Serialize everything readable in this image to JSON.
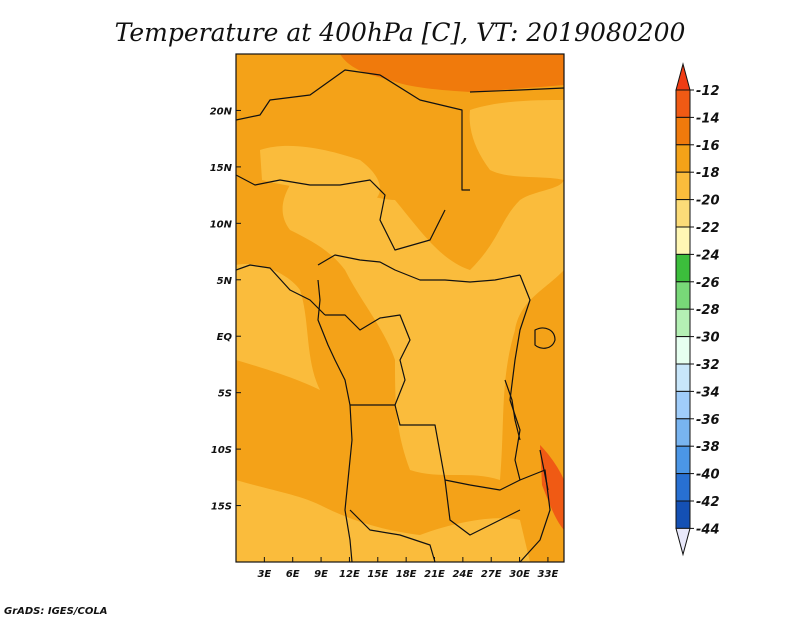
{
  "title": "Temperature at 400hPa [C], VT: 2019080200",
  "footer": "GrADS: IGES/COLA",
  "map": {
    "lon_range": [
      0,
      34.7
    ],
    "lat_range": [
      -20,
      25
    ],
    "lon_ticks": [
      {
        "value": 3,
        "label": "3E"
      },
      {
        "value": 6,
        "label": "6E"
      },
      {
        "value": 9,
        "label": "9E"
      },
      {
        "value": 12,
        "label": "12E"
      },
      {
        "value": 15,
        "label": "15E"
      },
      {
        "value": 18,
        "label": "18E"
      },
      {
        "value": 21,
        "label": "21E"
      },
      {
        "value": 24,
        "label": "24E"
      },
      {
        "value": 27,
        "label": "27E"
      },
      {
        "value": 30,
        "label": "30E"
      },
      {
        "value": 33,
        "label": "33E"
      }
    ],
    "lat_ticks": [
      {
        "value": 20,
        "label": "20N"
      },
      {
        "value": 15,
        "label": "15N"
      },
      {
        "value": 10,
        "label": "10N"
      },
      {
        "value": 5,
        "label": "5N"
      },
      {
        "value": 0,
        "label": "EQ"
      },
      {
        "value": -5,
        "label": "5S"
      },
      {
        "value": -10,
        "label": "10S"
      },
      {
        "value": -15,
        "label": "15S"
      }
    ]
  },
  "colorbar": {
    "levels": [
      "-12",
      "-14",
      "-16",
      "-18",
      "-20",
      "-22",
      "-24",
      "-26",
      "-28",
      "-30",
      "-32",
      "-34",
      "-36",
      "-38",
      "-40",
      "-42",
      "-44"
    ],
    "colors": [
      "#f05a14",
      "#f07a0c",
      "#f4a218",
      "#fabc3c",
      "#fcdc78",
      "#fff7b4",
      "#3cbe3c",
      "#78d878",
      "#b4f0b4",
      "#e6fff0",
      "#c8e6fa",
      "#a0cdfa",
      "#78b4f0",
      "#4b96e6",
      "#2870d2",
      "#1450b4",
      "#0a1e78"
    ],
    "arrow_top_color": "#f03c14",
    "arrow_bottom_color": "#e8e8fa"
  }
}
